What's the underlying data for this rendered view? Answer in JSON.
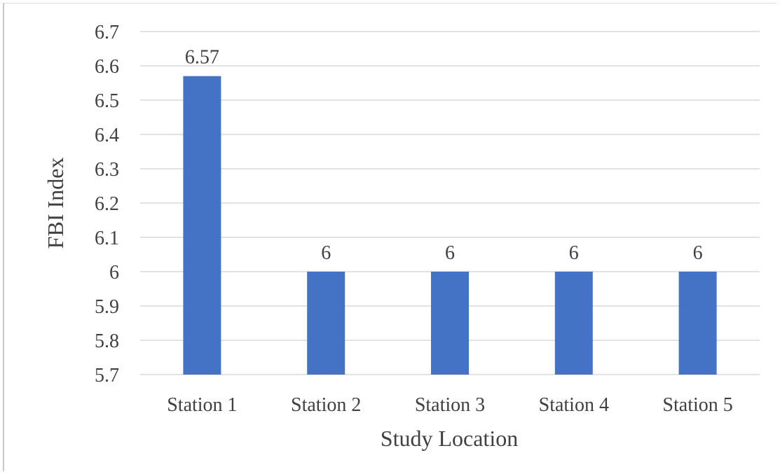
{
  "chart_data": {
    "type": "bar",
    "title": "",
    "xlabel": "Study Location",
    "ylabel": "FBI Index",
    "categories": [
      "Station 1",
      "Station 2",
      "Station 3",
      "Station 4",
      "Station 5"
    ],
    "values": [
      6.57,
      6,
      6,
      6,
      6
    ],
    "data_labels": [
      "6.57",
      "6",
      "6",
      "6",
      "6"
    ],
    "ylim": [
      5.7,
      6.7
    ],
    "yticks": [
      "6.7",
      "6.6",
      "6.5",
      "6.4",
      "6.3",
      "6.2",
      "6.1",
      "6",
      "5.9",
      "5.8",
      "5.7"
    ],
    "ytick_values": [
      6.7,
      6.6,
      6.5,
      6.4,
      6.3,
      6.2,
      6.1,
      6.0,
      5.9,
      5.8,
      5.7
    ],
    "grid": true,
    "legend": "none",
    "bar_color": "#4472C4"
  }
}
